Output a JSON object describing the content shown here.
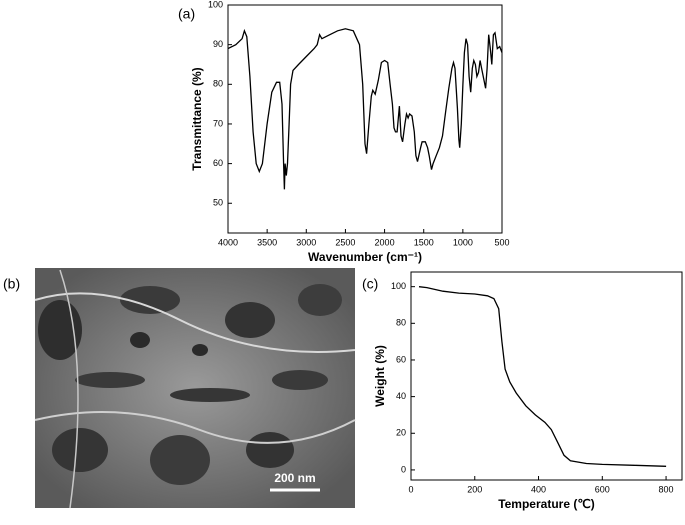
{
  "panels": {
    "a": "(a)",
    "b": "(b)",
    "c": "(c)"
  },
  "image": {
    "scale_bar": "200 nm"
  },
  "chart_data": [
    {
      "type": "line",
      "x_label": "Wavenumber (cm⁻¹)",
      "y_label": "Transmittance (%)",
      "color": "#000000",
      "xlim": [
        4000,
        500
      ],
      "xticks": [
        4000,
        3500,
        3000,
        2500,
        2000,
        1500,
        1000,
        500
      ],
      "ylim": [
        42.5,
        100
      ],
      "yticks": [
        50,
        60,
        70,
        80,
        90,
        100
      ],
      "x": [
        4000,
        3900,
        3820,
        3790,
        3760,
        3720,
        3680,
        3640,
        3600,
        3560,
        3500,
        3440,
        3380,
        3340,
        3310,
        3290,
        3280,
        3270,
        3255,
        3240,
        3220,
        3200,
        3170,
        3100,
        3000,
        2900,
        2860,
        2830,
        2800,
        2700,
        2600,
        2500,
        2400,
        2320,
        2280,
        2250,
        2230,
        2200,
        2170,
        2150,
        2120,
        2080,
        2040,
        2000,
        1960,
        1930,
        1900,
        1880,
        1860,
        1840,
        1810,
        1790,
        1770,
        1740,
        1720,
        1700,
        1680,
        1650,
        1620,
        1600,
        1580,
        1540,
        1520,
        1480,
        1450,
        1430,
        1400,
        1380,
        1340,
        1300,
        1260,
        1220,
        1180,
        1140,
        1120,
        1100,
        1070,
        1050,
        1040,
        1020,
        1000,
        980,
        960,
        940,
        920,
        900,
        880,
        860,
        840,
        820,
        800,
        780,
        760,
        730,
        710,
        690,
        670,
        650,
        630,
        610,
        590,
        560,
        530,
        500
      ],
      "values": [
        89,
        90,
        91.5,
        93.5,
        92,
        82,
        68,
        60,
        58,
        60,
        70,
        78,
        80.5,
        80.5,
        75,
        60,
        53.5,
        60,
        57,
        60,
        70,
        80,
        83.5,
        85,
        87,
        89,
        90,
        92.5,
        91.5,
        92.5,
        93.5,
        94,
        93.5,
        90,
        80,
        65,
        62.5,
        70,
        77,
        78.5,
        77.5,
        81,
        85.5,
        86,
        85.5,
        80,
        75,
        69,
        68,
        68,
        74.5,
        67,
        65.5,
        70,
        72.5,
        71.5,
        72.5,
        72,
        68,
        62,
        60.5,
        64,
        65.5,
        65.5,
        64,
        62,
        58.5,
        60,
        62,
        64,
        67,
        73,
        79,
        84,
        85.5,
        84,
        74,
        66,
        64,
        70,
        80,
        88,
        91.5,
        90,
        82,
        78,
        84,
        86,
        85,
        82,
        83,
        86,
        84,
        81,
        79,
        84,
        92.5,
        89,
        85,
        92.5,
        93,
        89,
        89.5,
        88
      ]
    },
    {
      "type": "line",
      "x_label": "Temperature (℃)",
      "y_label": "Weight (%)",
      "color": "#000000",
      "xlim": [
        0,
        850
      ],
      "xticks": [
        0,
        200,
        400,
        600,
        800
      ],
      "ylim": [
        -5.5,
        108
      ],
      "yticks": [
        0,
        20,
        40,
        60,
        80,
        100
      ],
      "x": [
        25,
        50,
        100,
        150,
        200,
        240,
        260,
        275,
        285,
        295,
        310,
        330,
        360,
        390,
        420,
        440,
        460,
        480,
        500,
        550,
        600,
        700,
        800
      ],
      "values": [
        100,
        99.5,
        97.5,
        96.5,
        96,
        95,
        93.5,
        88,
        70,
        55,
        48,
        42,
        35,
        30,
        26,
        22,
        15,
        8,
        5,
        3.5,
        3,
        2.5,
        2
      ]
    }
  ]
}
